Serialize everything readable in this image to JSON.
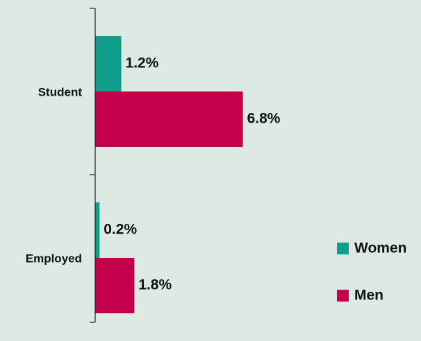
{
  "chart_data": {
    "type": "bar",
    "orientation": "horizontal",
    "categories": [
      "Student",
      "Employed"
    ],
    "series": [
      {
        "name": "Women",
        "color": "#0f9e8a",
        "values": [
          1.2,
          0.2
        ],
        "value_labels": [
          "1.2%",
          "0.2%"
        ]
      },
      {
        "name": "Men",
        "color": "#c4004a",
        "values": [
          6.8,
          1.8
        ],
        "value_labels": [
          "6.8%",
          "1.8%"
        ]
      }
    ],
    "xlim": [
      0,
      15
    ],
    "legend": "lower right"
  }
}
